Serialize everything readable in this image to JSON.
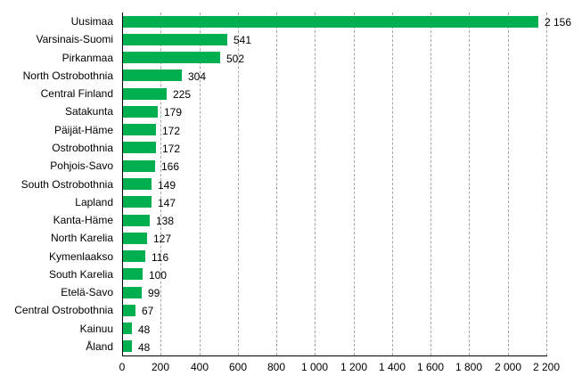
{
  "chart_data": {
    "type": "bar",
    "orientation": "horizontal",
    "title": "",
    "xlabel": "",
    "ylabel": "",
    "xlim": [
      0,
      2200
    ],
    "grid": "vertical dashed",
    "legend": null,
    "bar_color": "#00B050",
    "categories": [
      "Uusimaa",
      "Varsinais-Suomi",
      "Pirkanmaa",
      "North Ostrobothnia",
      "Central Finland",
      "Satakunta",
      "Päijät-Häme",
      "Ostrobothnia",
      "Pohjois-Savo",
      "South Ostrobothnia",
      "Lapland",
      "Kanta-Häme",
      "North Karelia",
      "Kymenlaakso",
      "South Karelia",
      "Etelä-Savo",
      "Central Ostrobothnia",
      "Kainuu",
      "Åland"
    ],
    "values": [
      2156,
      541,
      502,
      304,
      225,
      179,
      172,
      172,
      166,
      149,
      147,
      138,
      127,
      116,
      100,
      99,
      67,
      48,
      48
    ],
    "value_labels": [
      "2 156",
      "541",
      "502",
      "304",
      "225",
      "179",
      "172",
      "172",
      "166",
      "149",
      "147",
      "138",
      "127",
      "116",
      "100",
      "99",
      "67",
      "48",
      "48"
    ],
    "x_ticks": [
      0,
      200,
      400,
      600,
      800,
      1000,
      1200,
      1400,
      1600,
      1800,
      2000,
      2200
    ],
    "x_tick_labels": [
      "0",
      "200",
      "400",
      "600",
      "800",
      "1 000",
      "1 200",
      "1 400",
      "1 600",
      "1 800",
      "2 000",
      "2 200"
    ]
  }
}
